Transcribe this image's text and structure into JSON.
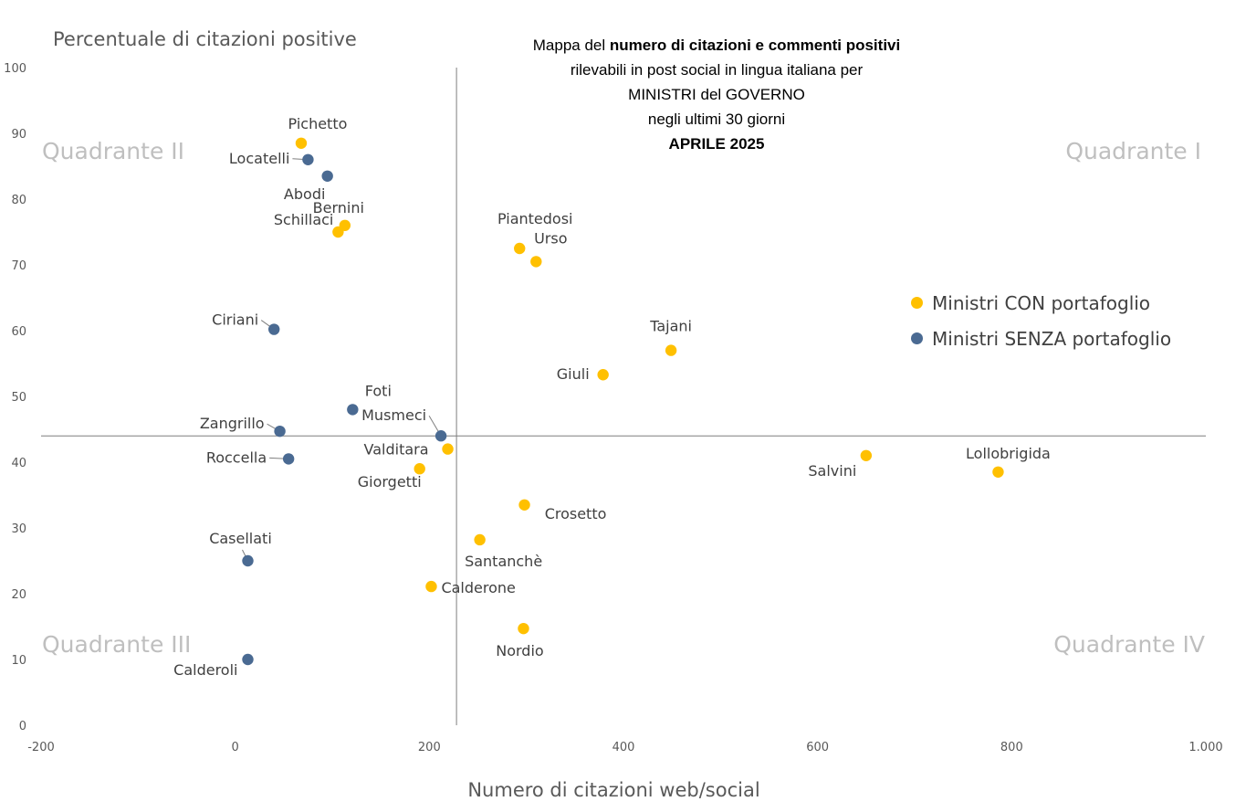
{
  "title": {
    "line1_pre": "Mappa del ",
    "line1_bold": "numero di citazioni e commenti positivi",
    "line2": "rilevabili in post social in lingua italiana per",
    "line3": "MINISTRI del GOVERNO",
    "line4": "negli ultimi 30 giorni",
    "line5": "APRILE 2025"
  },
  "chart_data": {
    "type": "scatter",
    "ylabel": "Percentuale di citazioni positive",
    "xlabel": "Numero di citazioni web/social",
    "xlim": [
      -200,
      1000
    ],
    "ylim": [
      0,
      100
    ],
    "x_ticks": [
      "-200",
      "0",
      "200",
      "400",
      "600",
      "800",
      "1.000"
    ],
    "x_tick_values": [
      -200,
      0,
      200,
      400,
      600,
      800,
      1000
    ],
    "y_ticks": [
      "0",
      "10",
      "20",
      "30",
      "40",
      "50",
      "60",
      "70",
      "80",
      "90",
      "100"
    ],
    "y_tick_values": [
      0,
      10,
      20,
      30,
      40,
      50,
      60,
      70,
      80,
      90,
      100
    ],
    "quadrant_lines": {
      "x": 228,
      "y": 44
    },
    "quadrants": [
      "Quadrante I",
      "Quadrante II",
      "Quadrante III",
      "Quadrante IV"
    ],
    "legend_position": "right",
    "series": [
      {
        "name": "Ministri CON portafoglio",
        "color": "#FFC000",
        "points": [
          {
            "label": "Pichetto",
            "x": 68,
            "y": 88.5
          },
          {
            "label": "Bernini",
            "x": 113,
            "y": 76
          },
          {
            "label": "Schillaci",
            "x": 106,
            "y": 75
          },
          {
            "label": "Piantedosi",
            "x": 293,
            "y": 72.5
          },
          {
            "label": "Urso",
            "x": 310,
            "y": 70.5
          },
          {
            "label": "Tajani",
            "x": 449,
            "y": 57
          },
          {
            "label": "Giuli",
            "x": 379,
            "y": 53.3
          },
          {
            "label": "Valditara",
            "x": 219,
            "y": 42
          },
          {
            "label": "Giorgetti",
            "x": 190,
            "y": 39
          },
          {
            "label": "Salvini",
            "x": 650,
            "y": 41
          },
          {
            "label": "Lollobrigida",
            "x": 786,
            "y": 38.5
          },
          {
            "label": "Crosetto",
            "x": 298,
            "y": 33.5
          },
          {
            "label": "Santanchè",
            "x": 252,
            "y": 28.2
          },
          {
            "label": "Calderone",
            "x": 202,
            "y": 21.1
          },
          {
            "label": "Nordio",
            "x": 297,
            "y": 14.7
          }
        ]
      },
      {
        "name": "Ministri SENZA portafoglio",
        "color": "#4A6A92",
        "points": [
          {
            "label": "Locatelli",
            "x": 75,
            "y": 86
          },
          {
            "label": "Abodi",
            "x": 95,
            "y": 83.5
          },
          {
            "label": "Ciriani",
            "x": 40,
            "y": 60.2
          },
          {
            "label": "Foti",
            "x": 121,
            "y": 48
          },
          {
            "label": "Musmeci",
            "x": 212,
            "y": 44
          },
          {
            "label": "Zangrillo",
            "x": 46,
            "y": 44.7
          },
          {
            "label": "Roccella",
            "x": 55,
            "y": 40.5
          },
          {
            "label": "Casellati",
            "x": 13,
            "y": 25
          },
          {
            "label": "Calderoli",
            "x": 13,
            "y": 10
          }
        ]
      }
    ]
  }
}
